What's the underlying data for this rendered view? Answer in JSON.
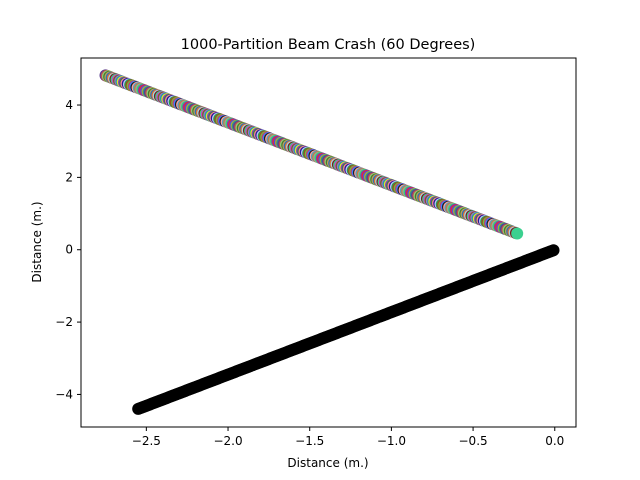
{
  "chart_data": {
    "type": "scatter",
    "title": "1000-Partition Beam Crash (60 Degrees)",
    "xlabel": "Distance (m.)",
    "ylabel": "Distance (m.)",
    "xlim": [
      -2.9,
      0.13
    ],
    "ylim": [
      -4.9,
      5.3
    ],
    "xticks": [
      -2.5,
      -2.0,
      -1.5,
      -1.0,
      -0.5,
      0.0
    ],
    "xtick_labels": [
      "−2.5",
      "−2.0",
      "−1.5",
      "−1.0",
      "−0.5",
      "0.0"
    ],
    "yticks": [
      -4,
      -2,
      0,
      2,
      4
    ],
    "ytick_labels": [
      "−4",
      "−2",
      "0",
      "2",
      "4"
    ],
    "grid": false,
    "legend": "none",
    "series": [
      {
        "kind": "multicolor-partitions",
        "x_start": -2.75,
        "y_start": 4.82,
        "x_end": -0.23,
        "y_end": 0.45,
        "n_points": 1000,
        "colors": [
          "#5b3f8f",
          "#c0504d",
          "#8fce7a",
          "#4a7a2c",
          "#b8a060",
          "#2f6fb5",
          "#e07030",
          "#a0d8e8",
          "#7a1f1f",
          "#3bd08f",
          "#d040c0",
          "#6b6b1f",
          "#9a70d0",
          "#1fa0a0",
          "#e8e030",
          "#7f3fbf",
          "#3f7f3f",
          "#ff7f9f",
          "#20208f",
          "#c0c0ff",
          "#2a9d4a",
          "#a04a20",
          "#6fbf3f",
          "#bf3f6f",
          "#4080ff",
          "#202020",
          "#ffa0a0",
          "#50a0c0",
          "#c08040",
          "#9f9f9f",
          "#2fdf6f",
          "#8f2faf",
          "#df2f2f",
          "#4f4fdf",
          "#afaf2f",
          "#2f8f8f"
        ]
      },
      {
        "kind": "solid",
        "color": "#000000",
        "x_start": -2.55,
        "y_start": -4.4,
        "x_end": 0.0,
        "y_end": 0.0,
        "n_points": 1000
      }
    ]
  }
}
